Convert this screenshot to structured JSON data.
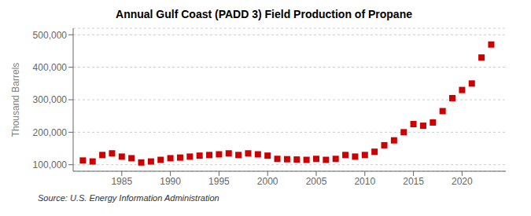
{
  "chart_data": {
    "type": "scatter",
    "title": "Annual Gulf Coast (PADD 3) Field Production of Propane",
    "ylabel": "Thousand Barrels",
    "source": "Source: U.S. Energy Information Administration",
    "color": "#cc0000",
    "marker": "square",
    "grid": "y",
    "x": [
      1981,
      1982,
      1983,
      1984,
      1985,
      1986,
      1987,
      1988,
      1989,
      1990,
      1991,
      1992,
      1993,
      1994,
      1995,
      1996,
      1997,
      1998,
      1999,
      2000,
      2001,
      2002,
      2003,
      2004,
      2005,
      2006,
      2007,
      2008,
      2009,
      2010,
      2011,
      2012,
      2013,
      2014,
      2015,
      2016,
      2017,
      2018,
      2019,
      2020,
      2021,
      2022,
      2023
    ],
    "values": [
      113000,
      110000,
      130000,
      135000,
      125000,
      120000,
      107000,
      110000,
      115000,
      120000,
      122000,
      125000,
      128000,
      130000,
      132000,
      135000,
      130000,
      135000,
      132000,
      128000,
      118000,
      117000,
      116000,
      115000,
      118000,
      115000,
      118000,
      130000,
      125000,
      130000,
      140000,
      160000,
      175000,
      200000,
      225000,
      220000,
      230000,
      265000,
      305000,
      330000,
      350000,
      430000,
      470000
    ],
    "xlim": [
      1980,
      2024.5
    ],
    "xticks": [
      1985,
      1990,
      1995,
      2000,
      2005,
      2010,
      2015,
      2020
    ],
    "ylim": [
      80000,
      520000
    ],
    "yticks": [
      {
        "value": 100000,
        "label": "100,000"
      },
      {
        "value": 200000,
        "label": "200,000"
      },
      {
        "value": 300000,
        "label": "300,000"
      },
      {
        "value": 400000,
        "label": "400,000"
      },
      {
        "value": 500000,
        "label": "500,000"
      }
    ]
  }
}
